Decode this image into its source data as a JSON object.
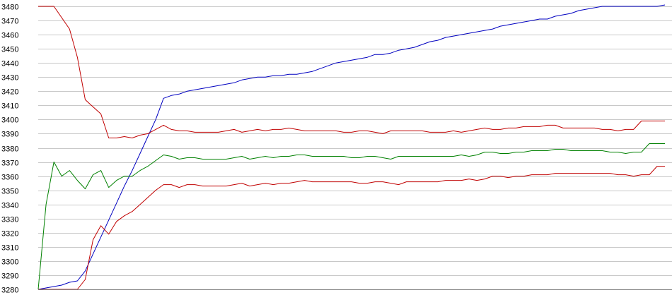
{
  "chart_data": {
    "type": "line",
    "title": "",
    "xlabel": "",
    "ylabel": "",
    "ylim": [
      3280,
      3480
    ],
    "y_ticks": [
      3280,
      3290,
      3300,
      3310,
      3320,
      3330,
      3340,
      3350,
      3360,
      3370,
      3380,
      3390,
      3400,
      3410,
      3420,
      3430,
      3440,
      3450,
      3460,
      3470,
      3480
    ],
    "y_tick_labels": [
      "3280",
      "3290",
      "3300",
      "3310",
      "3320",
      "3330",
      "3340",
      "3350",
      "3360",
      "3370",
      "3380",
      "3390",
      "3400",
      "3410",
      "3420",
      "3430",
      "3440",
      "3450",
      "3460",
      "3470",
      "3480"
    ],
    "x": [
      0,
      1,
      2,
      3,
      4,
      5,
      6,
      7,
      8,
      9,
      10,
      11,
      12,
      13,
      14,
      15,
      16,
      17,
      18,
      19,
      20,
      21,
      22,
      23,
      24,
      25,
      26,
      27,
      28,
      29,
      30,
      31,
      32,
      33,
      34,
      35,
      36,
      37,
      38,
      39,
      40,
      41,
      42,
      43,
      44,
      45,
      46,
      47,
      48,
      49,
      50,
      51,
      52,
      53,
      54,
      55,
      56,
      57,
      58,
      59,
      60,
      61,
      62,
      63,
      64,
      65,
      66,
      67,
      68,
      69,
      70,
      71,
      72,
      73,
      74,
      75,
      76,
      77,
      78,
      79,
      80
    ],
    "grid": true,
    "legend": "none",
    "series": [
      {
        "color": "#0000c0",
        "values": [
          3280,
          3281,
          3282,
          3283,
          3285,
          3286,
          3293,
          3305,
          3317,
          3329,
          3341,
          3353,
          3364,
          3376,
          3388,
          3400,
          3415,
          3417,
          3418,
          3420,
          3421,
          3422,
          3423,
          3424,
          3425,
          3426,
          3428,
          3429,
          3430,
          3430,
          3431,
          3431,
          3432,
          3432,
          3433,
          3434,
          3436,
          3438,
          3440,
          3441,
          3442,
          3443,
          3444,
          3446,
          3446,
          3447,
          3449,
          3450,
          3451,
          3453,
          3455,
          3456,
          3458,
          3459,
          3460,
          3461,
          3462,
          3463,
          3464,
          3466,
          3467,
          3468,
          3469,
          3470,
          3471,
          3471,
          3473,
          3474,
          3475,
          3477,
          3478,
          3479,
          3480,
          3480,
          3480,
          3480,
          3480,
          3480,
          3480,
          3480,
          3481
        ]
      },
      {
        "color": "#c00000",
        "values": [
          3480,
          3480,
          3480,
          3472,
          3464,
          3444,
          3414,
          3409,
          3404,
          3387,
          3387,
          3388,
          3387,
          3389,
          3390,
          3393,
          3396,
          3393,
          3392,
          3392,
          3391,
          3391,
          3391,
          3391,
          3392,
          3393,
          3391,
          3392,
          3393,
          3392,
          3393,
          3393,
          3394,
          3393,
          3392,
          3392,
          3392,
          3392,
          3392,
          3391,
          3391,
          3392,
          3392,
          3391,
          3390,
          3392,
          3392,
          3392,
          3392,
          3392,
          3391,
          3391,
          3391,
          3392,
          3391,
          3392,
          3393,
          3394,
          3393,
          3393,
          3394,
          3394,
          3395,
          3395,
          3395,
          3396,
          3396,
          3394,
          3394,
          3394,
          3394,
          3394,
          3393,
          3393,
          3392,
          3393,
          3393,
          3399,
          3399,
          3399,
          3399
        ]
      },
      {
        "color": "#008000",
        "values": [
          3280,
          3340,
          3370,
          3360,
          3364,
          3357,
          3351,
          3361,
          3364,
          3352,
          3357,
          3360,
          3360,
          3364,
          3367,
          3371,
          3375,
          3374,
          3372,
          3373,
          3373,
          3372,
          3372,
          3372,
          3372,
          3373,
          3374,
          3372,
          3373,
          3374,
          3373,
          3374,
          3374,
          3375,
          3375,
          3374,
          3374,
          3374,
          3374,
          3374,
          3373,
          3373,
          3374,
          3374,
          3373,
          3372,
          3374,
          3374,
          3374,
          3374,
          3374,
          3374,
          3374,
          3374,
          3375,
          3374,
          3375,
          3377,
          3377,
          3376,
          3376,
          3377,
          3377,
          3378,
          3378,
          3378,
          3379,
          3379,
          3378,
          3378,
          3378,
          3378,
          3378,
          3377,
          3377,
          3376,
          3377,
          3377,
          3383,
          3383,
          3383
        ]
      },
      {
        "color": "#c00000",
        "values": [
          3280,
          3280,
          3280,
          3280,
          3280,
          3280,
          3287,
          3315,
          3325,
          3319,
          3328,
          3332,
          3335,
          3340,
          3345,
          3350,
          3354,
          3354,
          3352,
          3354,
          3354,
          3353,
          3353,
          3353,
          3353,
          3354,
          3355,
          3353,
          3354,
          3355,
          3354,
          3355,
          3355,
          3356,
          3357,
          3356,
          3356,
          3356,
          3356,
          3356,
          3356,
          3355,
          3355,
          3356,
          3356,
          3355,
          3354,
          3356,
          3356,
          3356,
          3356,
          3356,
          3357,
          3357,
          3357,
          3358,
          3357,
          3358,
          3360,
          3360,
          3359,
          3360,
          3360,
          3361,
          3361,
          3361,
          3362,
          3362,
          3362,
          3362,
          3362,
          3362,
          3362,
          3362,
          3361,
          3361,
          3360,
          3361,
          3361,
          3367,
          3367
        ]
      }
    ]
  }
}
